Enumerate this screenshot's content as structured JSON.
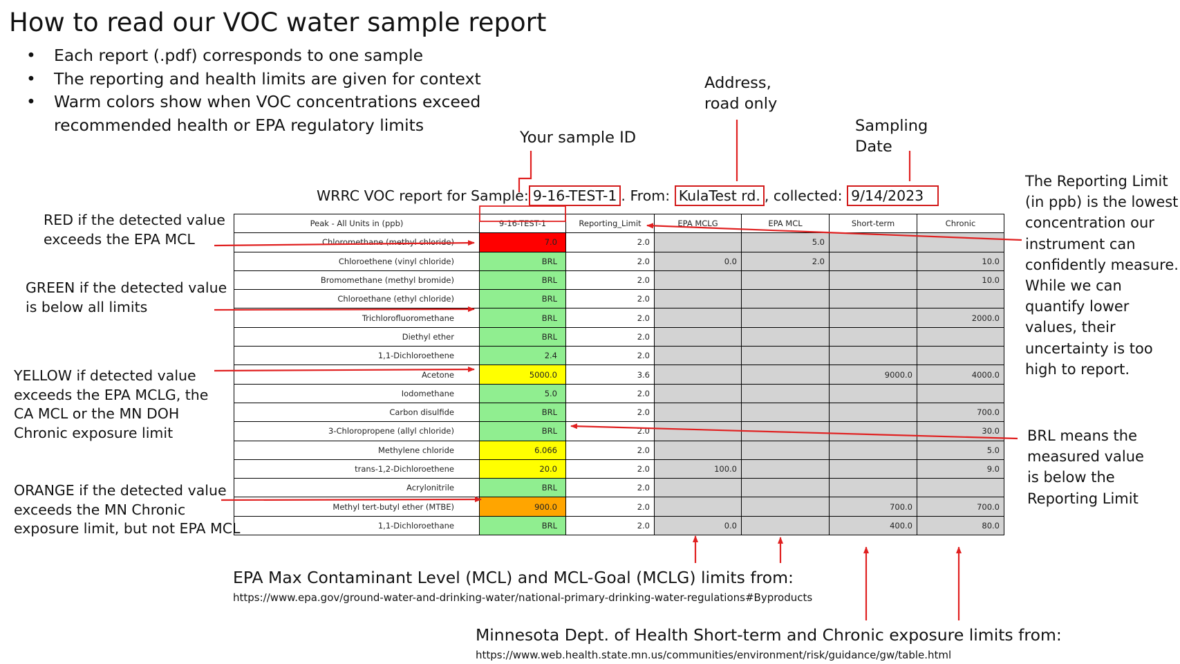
{
  "colors": {
    "annotation_red": "#e02020",
    "red": "#ff0000",
    "green": "#90ee90",
    "yellow": "#ffff00",
    "orange": "#ffa500",
    "limit_gray": "#d3d3d3"
  },
  "title": "How to read our VOC water sample report",
  "bullets": [
    "Each report (.pdf) corresponds to one sample",
    "The reporting and health limits are given for context",
    "Warm colors show when VOC concentrations exceed recommended health or EPA regulatory limits"
  ],
  "callouts": {
    "address_line1": "Address,",
    "address_line2": "road only",
    "sample_id": "Your sample ID",
    "date_line1": "Sampling",
    "date_line2": "Date",
    "reporting_limit": "The Reporting Limit (in ppb) is the lowest concentration our instrument can confidently measure. While we can quantify lower values, their uncertainty is too high to report.",
    "brl": "BRL means the measured value is below the Reporting Limit",
    "red": "RED if the detected value exceeds the EPA MCL",
    "green": "GREEN  if the detected value is below all limits",
    "yellow": "YELLOW if detected value exceeds the EPA MCLG, the CA MCL or the MN DOH Chronic exposure limit",
    "orange": "ORANGE if the detected value exceeds the MN Chronic exposure limit, but not EPA MCL"
  },
  "report": {
    "title_prefix": "WRRC VOC report for Sample:",
    "sample_id": "9-16-TEST-1",
    "dot": ".",
    "from_label": " From:",
    "address": "KulaTest rd.",
    "collected_label": ", collected:",
    "date": "9/14/2023"
  },
  "table": {
    "headers": [
      "Peak - All Units in (ppb)",
      "9-16-TEST-1",
      "Reporting_Limit",
      "EPA MCLG",
      "EPA MCL",
      "Short-term",
      "Chronic"
    ],
    "rows": [
      {
        "peak": "Chloromethane (methyl chloride)",
        "value": "7.0",
        "status": "red",
        "rl": "2.0",
        "mclg": "",
        "mcl": "5.0",
        "short": "",
        "chronic": ""
      },
      {
        "peak": "Chloroethene (vinyl chloride)",
        "value": "BRL",
        "status": "green",
        "rl": "2.0",
        "mclg": "0.0",
        "mcl": "2.0",
        "short": "",
        "chronic": "10.0"
      },
      {
        "peak": "Bromomethane (methyl bromide)",
        "value": "BRL",
        "status": "green",
        "rl": "2.0",
        "mclg": "",
        "mcl": "",
        "short": "",
        "chronic": "10.0"
      },
      {
        "peak": "Chloroethane (ethyl chloride)",
        "value": "BRL",
        "status": "green",
        "rl": "2.0",
        "mclg": "",
        "mcl": "",
        "short": "",
        "chronic": ""
      },
      {
        "peak": "Trichlorofluoromethane",
        "value": "BRL",
        "status": "green",
        "rl": "2.0",
        "mclg": "",
        "mcl": "",
        "short": "",
        "chronic": "2000.0"
      },
      {
        "peak": "Diethyl ether",
        "value": "BRL",
        "status": "green",
        "rl": "2.0",
        "mclg": "",
        "mcl": "",
        "short": "",
        "chronic": ""
      },
      {
        "peak": "1,1-Dichloroethene",
        "value": "2.4",
        "status": "green",
        "rl": "2.0",
        "mclg": "",
        "mcl": "",
        "short": "",
        "chronic": ""
      },
      {
        "peak": "Acetone",
        "value": "5000.0",
        "status": "yellow",
        "rl": "3.6",
        "mclg": "",
        "mcl": "",
        "short": "9000.0",
        "chronic": "4000.0"
      },
      {
        "peak": "Iodomethane",
        "value": "5.0",
        "status": "green",
        "rl": "2.0",
        "mclg": "",
        "mcl": "",
        "short": "",
        "chronic": ""
      },
      {
        "peak": "Carbon disulfide",
        "value": "BRL",
        "status": "green",
        "rl": "2.0",
        "mclg": "",
        "mcl": "",
        "short": "",
        "chronic": "700.0"
      },
      {
        "peak": "3-Chloropropene (allyl chloride)",
        "value": "BRL",
        "status": "green",
        "rl": "2.0",
        "mclg": "",
        "mcl": "",
        "short": "",
        "chronic": "30.0"
      },
      {
        "peak": "Methylene chloride",
        "value": "6.066",
        "status": "yellow",
        "rl": "2.0",
        "mclg": "",
        "mcl": "",
        "short": "",
        "chronic": "5.0"
      },
      {
        "peak": "trans-1,2-Dichloroethene",
        "value": "20.0",
        "status": "yellow",
        "rl": "2.0",
        "mclg": "100.0",
        "mcl": "",
        "short": "",
        "chronic": "9.0"
      },
      {
        "peak": "Acrylonitrile",
        "value": "BRL",
        "status": "green",
        "rl": "2.0",
        "mclg": "",
        "mcl": "",
        "short": "",
        "chronic": ""
      },
      {
        "peak": "Methyl tert-butyl ether (MTBE)",
        "value": "900.0",
        "status": "orange",
        "rl": "2.0",
        "mclg": "",
        "mcl": "",
        "short": "700.0",
        "chronic": "700.0"
      },
      {
        "peak": "1,1-Dichloroethane",
        "value": "BRL",
        "status": "green",
        "rl": "2.0",
        "mclg": "0.0",
        "mcl": "",
        "short": "400.0",
        "chronic": "80.0"
      }
    ]
  },
  "footer": {
    "epa_heading": "EPA Max Contaminant Level (MCL) and MCL-Goal (MCLG) limits from:",
    "epa_url": "https://www.epa.gov/ground-water-and-drinking-water/national-primary-drinking-water-regulations#Byproducts",
    "mn_heading": "Minnesota Dept. of Health Short-term and Chronic exposure limits from:",
    "mn_url": "https://www.web.health.state.mn.us/communities/environment/risk/guidance/gw/table.html"
  }
}
